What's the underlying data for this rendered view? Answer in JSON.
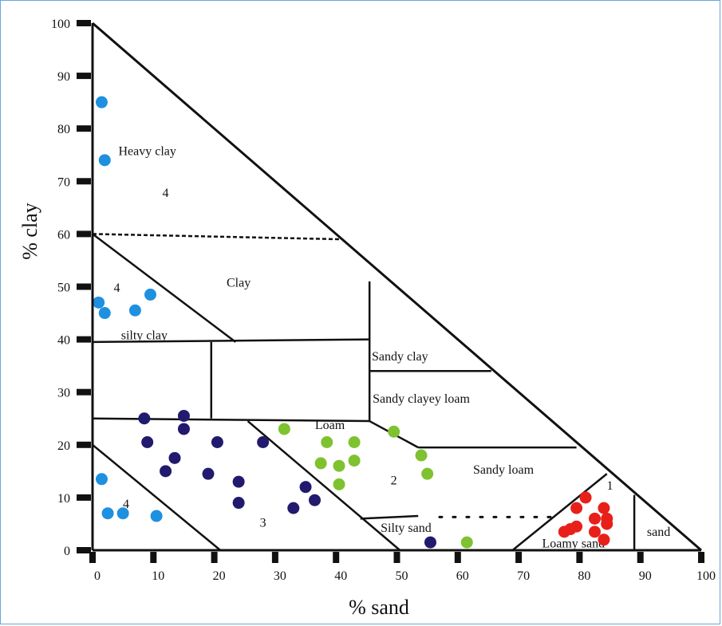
{
  "chart_data": {
    "type": "scatter",
    "xlabel": "% sand",
    "ylabel": "% clay",
    "xlim": [
      0,
      100
    ],
    "ylim": [
      0,
      100
    ],
    "x_ticks": [
      "0",
      "10",
      "20",
      "30",
      "40",
      "50",
      "60",
      "70",
      "80",
      "90",
      "100"
    ],
    "y_ticks": [
      "0",
      "10",
      "20",
      "30",
      "40",
      "50",
      "60",
      "70",
      "80",
      "90",
      "100"
    ],
    "region_labels": [
      {
        "text": "Heavy clay",
        "x": 9,
        "y": 75
      },
      {
        "text": "4",
        "x": 12,
        "y": 67
      },
      {
        "text": "4",
        "x": 4,
        "y": 49
      },
      {
        "text": "Clay",
        "x": 24,
        "y": 50
      },
      {
        "text": "silty clay",
        "x": 8.5,
        "y": 40
      },
      {
        "text": "Sandy clay",
        "x": 50.5,
        "y": 36
      },
      {
        "text": "Sandy clayey loam",
        "x": 54,
        "y": 28
      },
      {
        "text": "Loam",
        "x": 39,
        "y": 23
      },
      {
        "text": "2",
        "x": 49.5,
        "y": 12.5
      },
      {
        "text": "Sandy loam",
        "x": 67.5,
        "y": 14.5
      },
      {
        "text": "3",
        "x": 28,
        "y": 4.5
      },
      {
        "text": "4",
        "x": 5.5,
        "y": 8
      },
      {
        "text": "Silty sand",
        "x": 51.5,
        "y": 3.5
      },
      {
        "text": "1",
        "x": 85,
        "y": 11.5
      },
      {
        "text": "Loamy sand",
        "x": 79,
        "y": 0.5
      },
      {
        "text": "sand",
        "x": 93,
        "y": 2.7
      }
    ],
    "boundaries_solid": [
      [
        [
          0,
          60
        ],
        [
          23.5,
          39.5
        ]
      ],
      [
        [
          0,
          39.5
        ],
        [
          45.5,
          40
        ]
      ],
      [
        [
          19.5,
          39.5
        ],
        [
          19.5,
          25
        ]
      ],
      [
        [
          45.5,
          51
        ],
        [
          45.5,
          24.5
        ]
      ],
      [
        [
          45.5,
          34
        ],
        [
          65.5,
          34
        ]
      ],
      [
        [
          0,
          25
        ],
        [
          45.5,
          24.5
        ]
      ],
      [
        [
          45.5,
          24.5
        ],
        [
          53.5,
          19.5
        ]
      ],
      [
        [
          53.5,
          19.5
        ],
        [
          79.5,
          19.5
        ]
      ],
      [
        [
          25.5,
          24.5
        ],
        [
          50.5,
          0
        ]
      ],
      [
        [
          0,
          20
        ],
        [
          21,
          0
        ]
      ],
      [
        [
          44,
          6
        ],
        [
          53.5,
          6.5
        ]
      ],
      [
        [
          69,
          0
        ],
        [
          84.5,
          14.5
        ]
      ],
      [
        [
          89,
          10.5
        ],
        [
          89,
          0
        ]
      ]
    ],
    "boundaries_dashed": [
      [
        [
          0,
          60
        ],
        [
          40.5,
          59
        ]
      ]
    ],
    "boundaries_dotted": [
      [
        [
          57,
          6.3
        ],
        [
          77,
          6.3
        ]
      ]
    ],
    "series": [
      {
        "color": "#1e90e0",
        "points": [
          [
            1.5,
            85
          ],
          [
            2,
            74
          ],
          [
            1,
            47
          ],
          [
            2,
            45
          ],
          [
            7,
            45.5
          ],
          [
            9.5,
            48.5
          ],
          [
            1.5,
            13.5
          ],
          [
            2.5,
            7
          ],
          [
            5,
            7
          ],
          [
            10.5,
            6.5
          ]
        ]
      },
      {
        "color": "#211a6e",
        "points": [
          [
            8.5,
            25
          ],
          [
            9,
            20.5
          ],
          [
            15,
            25.5
          ],
          [
            15,
            23
          ],
          [
            13.5,
            17.5
          ],
          [
            12,
            15
          ],
          [
            19,
            14.5
          ],
          [
            20.5,
            20.5
          ],
          [
            24,
            13
          ],
          [
            24,
            9
          ],
          [
            28,
            20.5
          ],
          [
            35,
            12
          ],
          [
            36.5,
            9.5
          ],
          [
            33,
            8
          ],
          [
            55.5,
            1.5
          ]
        ]
      },
      {
        "color": "#7ec230",
        "points": [
          [
            31.5,
            23
          ],
          [
            38.5,
            20.5
          ],
          [
            43,
            20.5
          ],
          [
            37.5,
            16.5
          ],
          [
            40.5,
            16
          ],
          [
            43,
            17
          ],
          [
            40.5,
            12.5
          ],
          [
            49.5,
            22.5
          ],
          [
            54,
            18
          ],
          [
            55,
            14.5
          ],
          [
            61.5,
            1.5
          ]
        ]
      },
      {
        "color": "#e8201a",
        "points": [
          [
            81,
            10
          ],
          [
            79.5,
            8
          ],
          [
            84,
            8
          ],
          [
            82.5,
            6
          ],
          [
            84.5,
            6
          ],
          [
            79.5,
            4.5
          ],
          [
            78.5,
            4
          ],
          [
            77.5,
            3.5
          ],
          [
            82.5,
            3.5
          ],
          [
            84.5,
            5
          ],
          [
            84,
            2
          ]
        ]
      }
    ]
  }
}
